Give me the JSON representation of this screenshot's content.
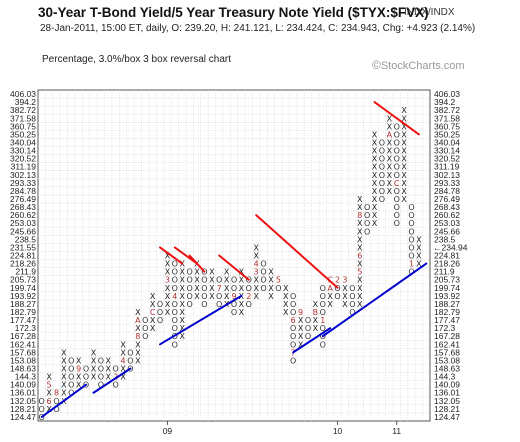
{
  "header": {
    "title": "30-Year T-Bond Yield/5 Year Treasury Note Yield ($TYX:$FVX)",
    "exchange": "INDX/INDX",
    "ohlc": "28-Jan-2011, 15:00 ET, daily, O: 239.20, H: 241.121, L: 234.424, C: 234.943, Chg: +4.923 (2.14%)",
    "subtitle": "Percentage, 3.0%/box 3 box reversal chart",
    "watermark_symbol": "©",
    "watermark_text": "StockCharts.com"
  },
  "colors": {
    "grid": "#cfcfcf",
    "support": "#0000cc",
    "resistance": "#ee1111",
    "last_price": "#b03030"
  },
  "chart_data": {
    "type": "point-and-figure",
    "title": "30-Year T-Bond Yield/5 Year Treasury Note Yield ($TYX:$FVX)",
    "box_size": "3.0%",
    "reversal": 3,
    "price_scale": [
      "406.03",
      "394.2",
      "382.72",
      "371.58",
      "360.75",
      "350.25",
      "340.04",
      "330.14",
      "320.52",
      "311.19",
      "302.13",
      "293.33",
      "284.78",
      "276.49",
      "268.43",
      "260.62",
      "253.03",
      "245.66",
      "238.5",
      "231.55",
      "224.81",
      "218.26",
      "211.9",
      "205.73",
      "199.74",
      "193.92",
      "188.27",
      "182.79",
      "177.47",
      "172.3",
      "167.28",
      "162.41",
      "157.68",
      "153.08",
      "148.63",
      "144.3",
      "140.09",
      "136.01",
      "132.05",
      "128.21",
      "124.47"
    ],
    "last_price_label": "231.55",
    "last_price_tag": "234.94",
    "x_axis_labels": [
      {
        "col": 17,
        "text": "09"
      },
      {
        "col": 40,
        "text": "10"
      },
      {
        "col": 48,
        "text": "11"
      }
    ],
    "columns": [
      {
        "type": "O",
        "top": 132.05,
        "bottom": 124.47
      },
      {
        "type": "X",
        "top": 144.3,
        "bottom": 128.21,
        "marks": {
          "132.05": "6",
          "140.09": "5"
        }
      },
      {
        "type": "O",
        "top": 136.01,
        "bottom": 128.21,
        "marks": {
          "136.01": "8"
        }
      },
      {
        "type": "X",
        "top": 157.68,
        "bottom": 132.05
      },
      {
        "type": "O",
        "top": 153.08,
        "bottom": 136.01
      },
      {
        "type": "X",
        "top": 153.08,
        "bottom": 140.09,
        "marks": {
          "148.63": "9"
        }
      },
      {
        "type": "O",
        "top": 148.63,
        "bottom": 140.09
      },
      {
        "type": "X",
        "top": 157.68,
        "bottom": 144.3
      },
      {
        "type": "O",
        "top": 153.08,
        "bottom": 140.09
      },
      {
        "type": "X",
        "top": 153.08,
        "bottom": 144.3
      },
      {
        "type": "O",
        "top": 148.63,
        "bottom": 140.09,
        "marks": {
          "144.3": "2"
        }
      },
      {
        "type": "X",
        "top": 162.41,
        "bottom": 144.3,
        "marks": {
          "153.08": "4"
        }
      },
      {
        "type": "O",
        "top": 157.68,
        "bottom": 148.63
      },
      {
        "type": "X",
        "top": 182.79,
        "bottom": 153.08,
        "marks": {
          "167.28": "8",
          "177.47": "A"
        }
      },
      {
        "type": "O",
        "top": 177.47,
        "bottom": 167.28
      },
      {
        "type": "X",
        "top": 193.92,
        "bottom": 172.3,
        "marks": {
          "182.79": "C"
        }
      },
      {
        "type": "O",
        "top": 188.27,
        "bottom": 177.47
      },
      {
        "type": "X",
        "top": 224.81,
        "bottom": 182.79,
        "marks": {
          "205.73": "3"
        }
      },
      {
        "type": "O",
        "top": 218.26,
        "bottom": 162.41,
        "marks": {
          "193.92": "4"
        }
      },
      {
        "type": "X",
        "top": 218.26,
        "bottom": 167.28
      },
      {
        "type": "O",
        "top": 211.9,
        "bottom": 188.27
      },
      {
        "type": "X",
        "top": 218.26,
        "bottom": 193.92
      },
      {
        "type": "O",
        "top": 211.9,
        "bottom": 188.27
      },
      {
        "type": "X",
        "top": 211.9,
        "bottom": 193.92
      },
      {
        "type": "O",
        "top": 205.73,
        "bottom": 188.27,
        "marks": {
          "199.74": "7"
        }
      },
      {
        "type": "X",
        "top": 211.9,
        "bottom": 188.27
      },
      {
        "type": "O",
        "top": 205.73,
        "bottom": 182.79,
        "marks": {
          "193.92": "9"
        }
      },
      {
        "type": "X",
        "top": 211.9,
        "bottom": 182.79
      },
      {
        "type": "O",
        "top": 205.73,
        "bottom": 188.27,
        "marks": {
          "193.92": "2"
        }
      },
      {
        "type": "X",
        "top": 231.55,
        "bottom": 193.92,
        "marks": {
          "211.9": "3",
          "218.26": "4"
        }
      },
      {
        "type": "O",
        "top": 218.26,
        "bottom": 199.74
      },
      {
        "type": "X",
        "top": 211.9,
        "bottom": 193.92
      },
      {
        "type": "O",
        "top": 205.73,
        "bottom": 199.74,
        "marks": {
          "205.73": "5"
        }
      },
      {
        "type": "X",
        "top": 199.74,
        "bottom": 182.79
      },
      {
        "type": "O",
        "top": 193.92,
        "bottom": 153.08,
        "marks": {
          "177.47": "6",
          "157.68": "7"
        }
      },
      {
        "type": "X",
        "top": 182.79,
        "bottom": 162.41,
        "marks": {
          "182.79": "9"
        }
      },
      {
        "type": "O",
        "top": 177.47,
        "bottom": 167.28
      },
      {
        "type": "X",
        "top": 188.27,
        "bottom": 172.3,
        "marks": {
          "182.79": "B"
        }
      },
      {
        "type": "O",
        "top": 199.74,
        "bottom": 162.41,
        "marks": {
          "177.47": "1"
        }
      },
      {
        "type": "X",
        "top": 205.73,
        "bottom": 188.27,
        "marks": {
          "205.73": "C",
          "199.74": "A"
        }
      },
      {
        "type": "O",
        "top": 205.73,
        "bottom": 193.92,
        "marks": {
          "205.73": "2"
        }
      },
      {
        "type": "X",
        "top": 205.73,
        "bottom": 188.27,
        "marks": {
          "205.73": "3"
        }
      },
      {
        "type": "O",
        "top": 199.74,
        "bottom": 182.79
      },
      {
        "type": "X",
        "top": 276.49,
        "bottom": 188.27,
        "marks": {
          "211.9": "5",
          "224.81": "6",
          "260.62": "8"
        }
      },
      {
        "type": "O",
        "top": 268.43,
        "bottom": 245.66
      },
      {
        "type": "X",
        "top": 350.25,
        "bottom": 253.03
      },
      {
        "type": "O",
        "top": 340.04,
        "bottom": 276.49
      },
      {
        "type": "X",
        "top": 371.58,
        "bottom": 284.78,
        "marks": {
          "350.25": "A",
          "268.43": "9"
        }
      },
      {
        "type": "O",
        "top": 360.75,
        "bottom": 253.03,
        "marks": {
          "293.33": "C"
        }
      },
      {
        "type": "X",
        "top": 382.72,
        "bottom": 276.49
      },
      {
        "type": "O",
        "top": 268.43,
        "bottom": 211.9,
        "marks": {
          "218.26": "1"
        }
      },
      {
        "type": "X",
        "top": 238.5,
        "bottom": 218.26
      }
    ],
    "trend_lines": [
      {
        "kind": "support",
        "from": {
          "col": 0,
          "price": 124.47
        },
        "to": {
          "col": 6,
          "price": 140.09
        }
      },
      {
        "kind": "support",
        "from": {
          "col": 7,
          "price": 136.01
        },
        "to": {
          "col": 12,
          "price": 148.63
        }
      },
      {
        "kind": "support",
        "from": {
          "col": 16,
          "price": 162.41
        },
        "to": {
          "col": 27,
          "price": 193.92
        }
      },
      {
        "kind": "support",
        "from": {
          "col": 34,
          "price": 157.68
        },
        "to": {
          "col": 39,
          "price": 172.3
        }
      },
      {
        "kind": "support",
        "from": {
          "col": 38,
          "price": 167.28
        },
        "to": {
          "col": 52,
          "price": 218.26
        }
      },
      {
        "kind": "resistance",
        "from": {
          "col": 16,
          "price": 231.55
        },
        "to": {
          "col": 19,
          "price": 218.26
        }
      },
      {
        "kind": "resistance",
        "from": {
          "col": 18,
          "price": 231.55
        },
        "to": {
          "col": 21,
          "price": 218.26
        }
      },
      {
        "kind": "resistance",
        "from": {
          "col": 20,
          "price": 224.81
        },
        "to": {
          "col": 22,
          "price": 211.9
        }
      },
      {
        "kind": "resistance",
        "from": {
          "col": 24,
          "price": 224.81
        },
        "to": {
          "col": 28,
          "price": 205.73
        }
      },
      {
        "kind": "resistance",
        "from": {
          "col": 29,
          "price": 260.62
        },
        "to": {
          "col": 40,
          "price": 199.74
        }
      },
      {
        "kind": "resistance",
        "from": {
          "col": 45,
          "price": 394.2
        },
        "to": {
          "col": 51,
          "price": 350.25
        }
      }
    ]
  }
}
